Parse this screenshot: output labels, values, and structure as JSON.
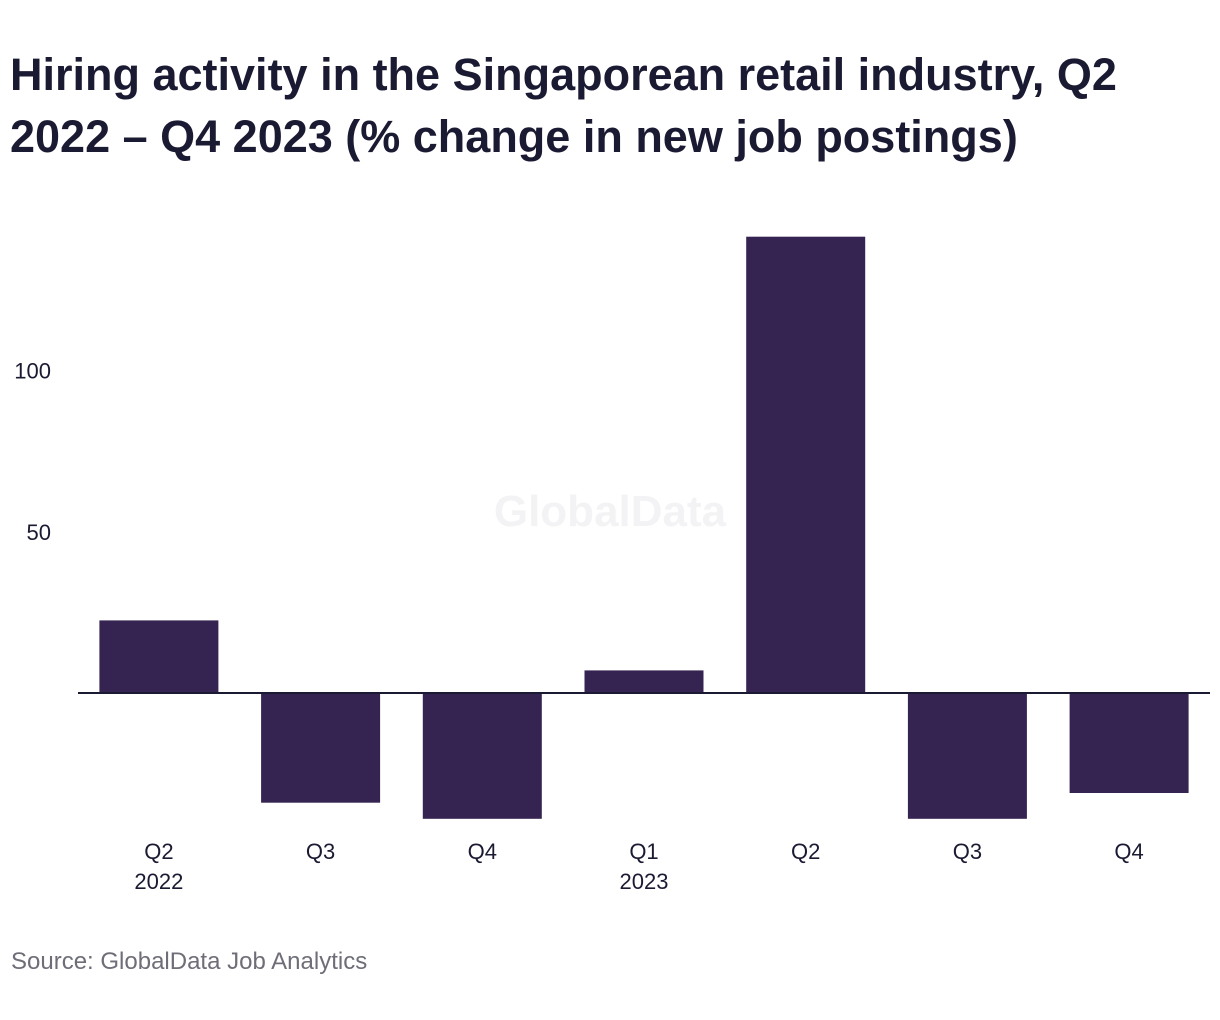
{
  "title": "Hiring activity in the Singaporean retail industry, Q2 2022 – Q4 2023 (% change in new job postings)",
  "source": "Source: GlobalData Job Analytics",
  "watermark": "GlobalData",
  "colors": {
    "bar": "#352451",
    "axis": "#1b1a33",
    "text": "#1b1a33",
    "source": "#6e6e78"
  },
  "chart_data": {
    "type": "bar",
    "categories": [
      "Q2 2022",
      "Q3",
      "Q4",
      "Q1 2023",
      "Q2",
      "Q3",
      "Q4"
    ],
    "category_labels": [
      [
        "Q2",
        "2022"
      ],
      [
        "Q3"
      ],
      [
        "Q4"
      ],
      [
        "Q1",
        "2023"
      ],
      [
        "Q2"
      ],
      [
        "Q3"
      ],
      [
        "Q4"
      ]
    ],
    "values": [
      22.5,
      -34,
      -39,
      7,
      141.5,
      -39,
      -31
    ],
    "yticks": [
      50,
      100
    ],
    "ylim": [
      -45,
      150
    ],
    "grid": false,
    "legend": "none",
    "xlabel": "",
    "ylabel": ""
  }
}
